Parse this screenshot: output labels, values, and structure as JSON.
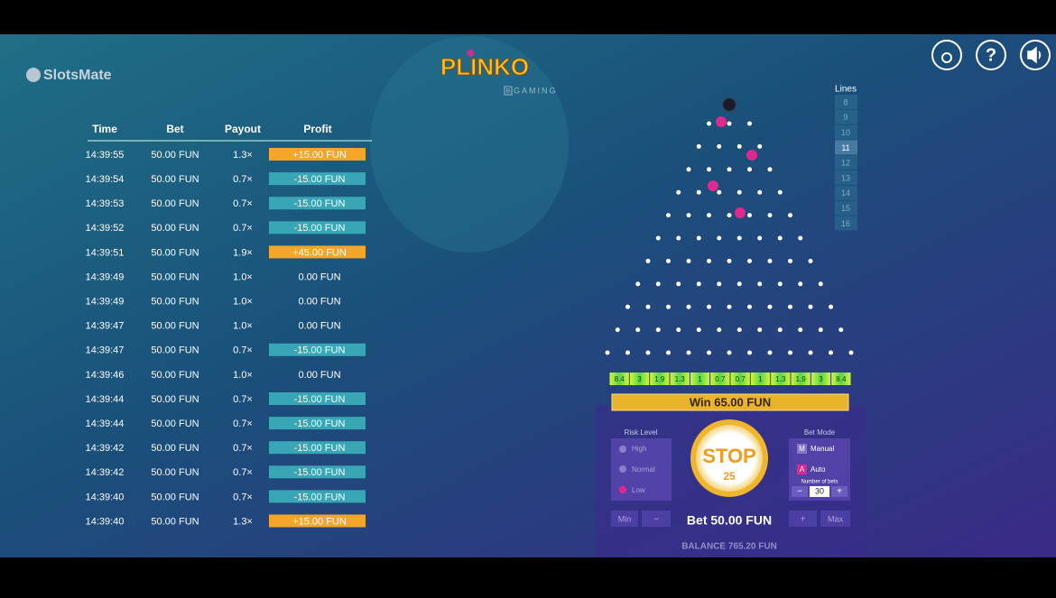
{
  "brand": "SlotsMate",
  "logo": {
    "title": "PLINKO",
    "maker_mark": "B",
    "maker": "GAMING"
  },
  "top_buttons": {
    "help": "?"
  },
  "history": {
    "headers": [
      "Time",
      "Bet",
      "Payout",
      "Profit"
    ],
    "rows": [
      [
        "14:39:55",
        "50.00 FUN",
        "1.3×",
        "+15.00 FUN"
      ],
      [
        "14:39:54",
        "50.00 FUN",
        "0.7×",
        "-15.00 FUN"
      ],
      [
        "14:39:53",
        "50.00 FUN",
        "0.7×",
        "-15.00 FUN"
      ],
      [
        "14:39:52",
        "50.00 FUN",
        "0.7×",
        "-15.00 FUN"
      ],
      [
        "14:39:51",
        "50.00 FUN",
        "1.9×",
        "+45.00 FUN"
      ],
      [
        "14:39:49",
        "50.00 FUN",
        "1.0×",
        "0.00 FUN"
      ],
      [
        "14:39:49",
        "50.00 FUN",
        "1.0×",
        "0.00 FUN"
      ],
      [
        "14:39:47",
        "50.00 FUN",
        "1.0×",
        "0.00 FUN"
      ],
      [
        "14:39:47",
        "50.00 FUN",
        "0.7×",
        "-15.00 FUN"
      ],
      [
        "14:39:46",
        "50.00 FUN",
        "1.0×",
        "0.00 FUN"
      ],
      [
        "14:39:44",
        "50.00 FUN",
        "0.7×",
        "-15.00 FUN"
      ],
      [
        "14:39:44",
        "50.00 FUN",
        "0.7×",
        "-15.00 FUN"
      ],
      [
        "14:39:42",
        "50.00 FUN",
        "0.7×",
        "-15.00 FUN"
      ],
      [
        "14:39:42",
        "50.00 FUN",
        "0.7×",
        "-15.00 FUN"
      ],
      [
        "14:39:40",
        "50.00 FUN",
        "0.7×",
        "-15.00 FUN"
      ],
      [
        "14:39:40",
        "50.00 FUN",
        "1.3×",
        "+15.00 FUN"
      ]
    ]
  },
  "lines": {
    "title": "Lines",
    "options": [
      "8",
      "9",
      "10",
      "11",
      "12",
      "13",
      "14",
      "15",
      "16"
    ]
  },
  "multipliers": [
    "8.4",
    "3",
    "1.9",
    "1.3",
    "1",
    "0.7",
    "0.7",
    "1",
    "1.3",
    "1.9",
    "3",
    "8.4"
  ],
  "win": "Win 65.00 FUN",
  "risk": {
    "title": "Risk Level",
    "options": [
      "High",
      "Normal",
      "Low"
    ]
  },
  "stop": {
    "label": "STOP",
    "count": "25"
  },
  "bet_mode": {
    "title": "Bet Mode",
    "manual_key": "M",
    "manual": "Manual",
    "auto_key": "A",
    "auto": "Auto",
    "number_label": "Number of bets",
    "number": "30",
    "minus": "−",
    "plus": "+"
  },
  "bet": {
    "min": "Min",
    "minus": "−",
    "amount": "Bet 50.00 FUN",
    "plus": "+",
    "max": "Max"
  },
  "balance": "BALANCE 765.20 FUN"
}
